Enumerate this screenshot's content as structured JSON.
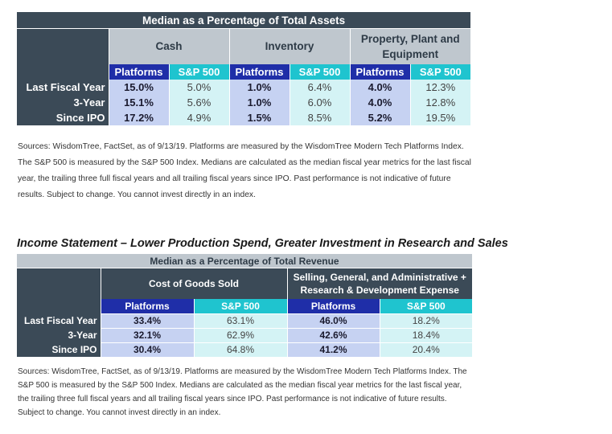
{
  "table1": {
    "title": "Median as a Percentage of Total Assets",
    "groups": [
      "Cash",
      "Inventory",
      "Property, Plant and Equipment"
    ],
    "sub": [
      "Platforms",
      "S&P 500"
    ],
    "rows": [
      {
        "label": "Last Fiscal Year",
        "values": [
          "15.0%",
          "5.0%",
          "1.0%",
          "6.4%",
          "4.0%",
          "12.3%"
        ]
      },
      {
        "label": "3-Year",
        "values": [
          "15.1%",
          "5.6%",
          "1.0%",
          "6.0%",
          "4.0%",
          "12.8%"
        ]
      },
      {
        "label": "Since IPO",
        "values": [
          "17.2%",
          "4.9%",
          "1.5%",
          "8.5%",
          "5.2%",
          "19.5%"
        ]
      }
    ]
  },
  "note1": "Sources: WisdomTree, FactSet, as of 9/13/19. Platforms are measured by the WisdomTree Modern Tech Platforms Index. The S&P 500 is measured by the S&P 500 Index. Medians are calculated as the median fiscal year metrics for the last fiscal year, the trailing three full fiscal years and all trailing fiscal years since IPO. Past performance is not indicative of future results. Subject to change. You cannot invest directly in an index.",
  "heading2": "Income Statement – Lower Production Spend, Greater Investment in Research and Sales",
  "table2": {
    "title": "Median as a Percentage of Total Revenue",
    "groups": [
      "Cost of Goods Sold",
      "Selling, General, and Administrative + Research & Development Expense"
    ],
    "sub": [
      "Platforms",
      "S&P 500"
    ],
    "rows": [
      {
        "label": "Last Fiscal Year",
        "values": [
          "33.4%",
          "63.1%",
          "46.0%",
          "18.2%"
        ]
      },
      {
        "label": "3-Year",
        "values": [
          "32.1%",
          "62.9%",
          "42.6%",
          "18.4%"
        ]
      },
      {
        "label": "Since IPO",
        "values": [
          "30.4%",
          "64.8%",
          "41.2%",
          "20.4%"
        ]
      }
    ]
  },
  "note2": "Sources: WisdomTree, FactSet, as of 9/13/19. Platforms are measured by the WisdomTree Modern Tech Platforms Index. The S&P 500 is measured by the S&P 500 Index. Medians are calculated as the median fiscal year metrics for the last fiscal year, the trailing three full fiscal years and all trailing fiscal years since IPO. Past performance is not indicative of future results. Subject to change. You cannot invest directly in an index."
}
